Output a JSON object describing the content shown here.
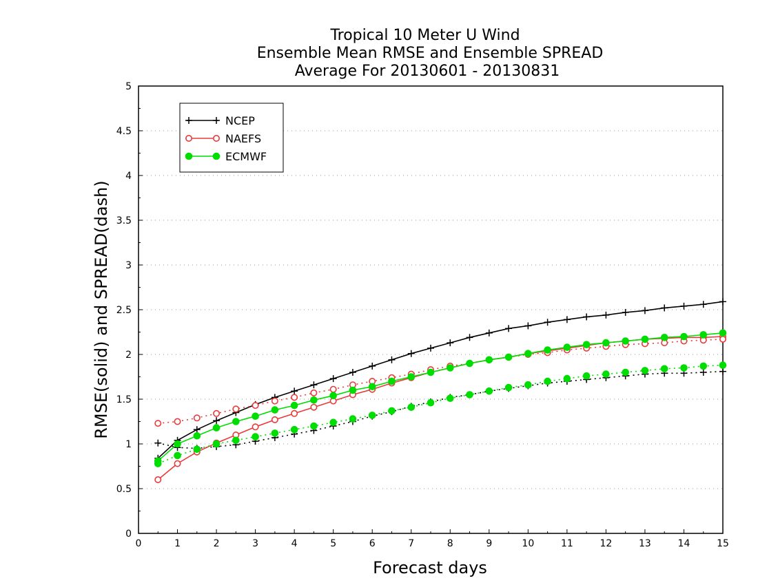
{
  "chart_data": {
    "type": "line",
    "title": [
      "Tropical 10 Meter U Wind",
      "Ensemble Mean RMSE and Ensemble SPREAD",
      "Average For 20130601 - 20130831"
    ],
    "xlabel": "Forecast days",
    "ylabel": "RMSE(solid) and SPREAD(dash)",
    "xlim": [
      0,
      15
    ],
    "ylim": [
      0,
      5
    ],
    "xticks": [
      "0",
      "1",
      "2",
      "3",
      "4",
      "5",
      "6",
      "7",
      "8",
      "9",
      "10",
      "11",
      "12",
      "13",
      "14",
      "15"
    ],
    "yticks": [
      "0",
      "0.5",
      "1",
      "1.5",
      "2",
      "2.5",
      "3",
      "3.5",
      "4",
      "4.5",
      "5"
    ],
    "grid": "horizontal dotted",
    "legend_position": "top-left",
    "x": [
      0.5,
      1,
      1.5,
      2,
      2.5,
      3,
      3.5,
      4,
      4.5,
      5,
      5.5,
      6,
      6.5,
      7,
      7.5,
      8,
      8.5,
      9,
      9.5,
      10,
      10.5,
      11,
      11.5,
      12,
      12.5,
      13,
      13.5,
      14,
      14.5,
      15
    ],
    "series": [
      {
        "name": "NCEP",
        "color": "#000000",
        "marker": "plus",
        "rmse": [
          0.84,
          1.04,
          1.16,
          1.26,
          1.35,
          1.44,
          1.52,
          1.59,
          1.66,
          1.73,
          1.8,
          1.87,
          1.94,
          2.01,
          2.07,
          2.13,
          2.19,
          2.24,
          2.29,
          2.32,
          2.36,
          2.39,
          2.42,
          2.44,
          2.47,
          2.49,
          2.52,
          2.54,
          2.56,
          2.59
        ],
        "spread": [
          1.01,
          0.96,
          0.95,
          0.97,
          0.99,
          1.03,
          1.07,
          1.11,
          1.15,
          1.2,
          1.25,
          1.31,
          1.36,
          1.42,
          1.47,
          1.52,
          1.55,
          1.59,
          1.62,
          1.65,
          1.68,
          1.7,
          1.72,
          1.74,
          1.76,
          1.78,
          1.79,
          1.79,
          1.8,
          1.81
        ]
      },
      {
        "name": "NAEFS",
        "color": "#e83a3a",
        "marker": "open-circle",
        "rmse": [
          0.6,
          0.78,
          0.91,
          1.01,
          1.1,
          1.19,
          1.27,
          1.34,
          1.41,
          1.48,
          1.55,
          1.61,
          1.68,
          1.74,
          1.8,
          1.85,
          1.9,
          1.94,
          1.97,
          2.01,
          2.04,
          2.07,
          2.1,
          2.13,
          2.15,
          2.17,
          2.18,
          2.19,
          2.19,
          2.2
        ],
        "spread": [
          1.23,
          1.25,
          1.29,
          1.34,
          1.39,
          1.43,
          1.48,
          1.52,
          1.57,
          1.61,
          1.66,
          1.7,
          1.74,
          1.78,
          1.83,
          1.87,
          1.9,
          1.94,
          1.97,
          2.0,
          2.02,
          2.05,
          2.07,
          2.09,
          2.11,
          2.12,
          2.13,
          2.15,
          2.16,
          2.17
        ]
      },
      {
        "name": "ECMWF",
        "color": "#00dd00",
        "marker": "filled-circle",
        "rmse": [
          0.81,
          1.0,
          1.09,
          1.18,
          1.25,
          1.31,
          1.38,
          1.43,
          1.49,
          1.54,
          1.6,
          1.64,
          1.7,
          1.75,
          1.8,
          1.85,
          1.9,
          1.94,
          1.97,
          2.01,
          2.05,
          2.08,
          2.11,
          2.13,
          2.15,
          2.17,
          2.19,
          2.2,
          2.22,
          2.24
        ],
        "spread": [
          0.78,
          0.87,
          0.94,
          1.0,
          1.04,
          1.08,
          1.12,
          1.16,
          1.2,
          1.24,
          1.28,
          1.32,
          1.37,
          1.41,
          1.46,
          1.51,
          1.55,
          1.59,
          1.63,
          1.66,
          1.7,
          1.73,
          1.76,
          1.78,
          1.8,
          1.82,
          1.84,
          1.85,
          1.87,
          1.88
        ]
      }
    ]
  }
}
